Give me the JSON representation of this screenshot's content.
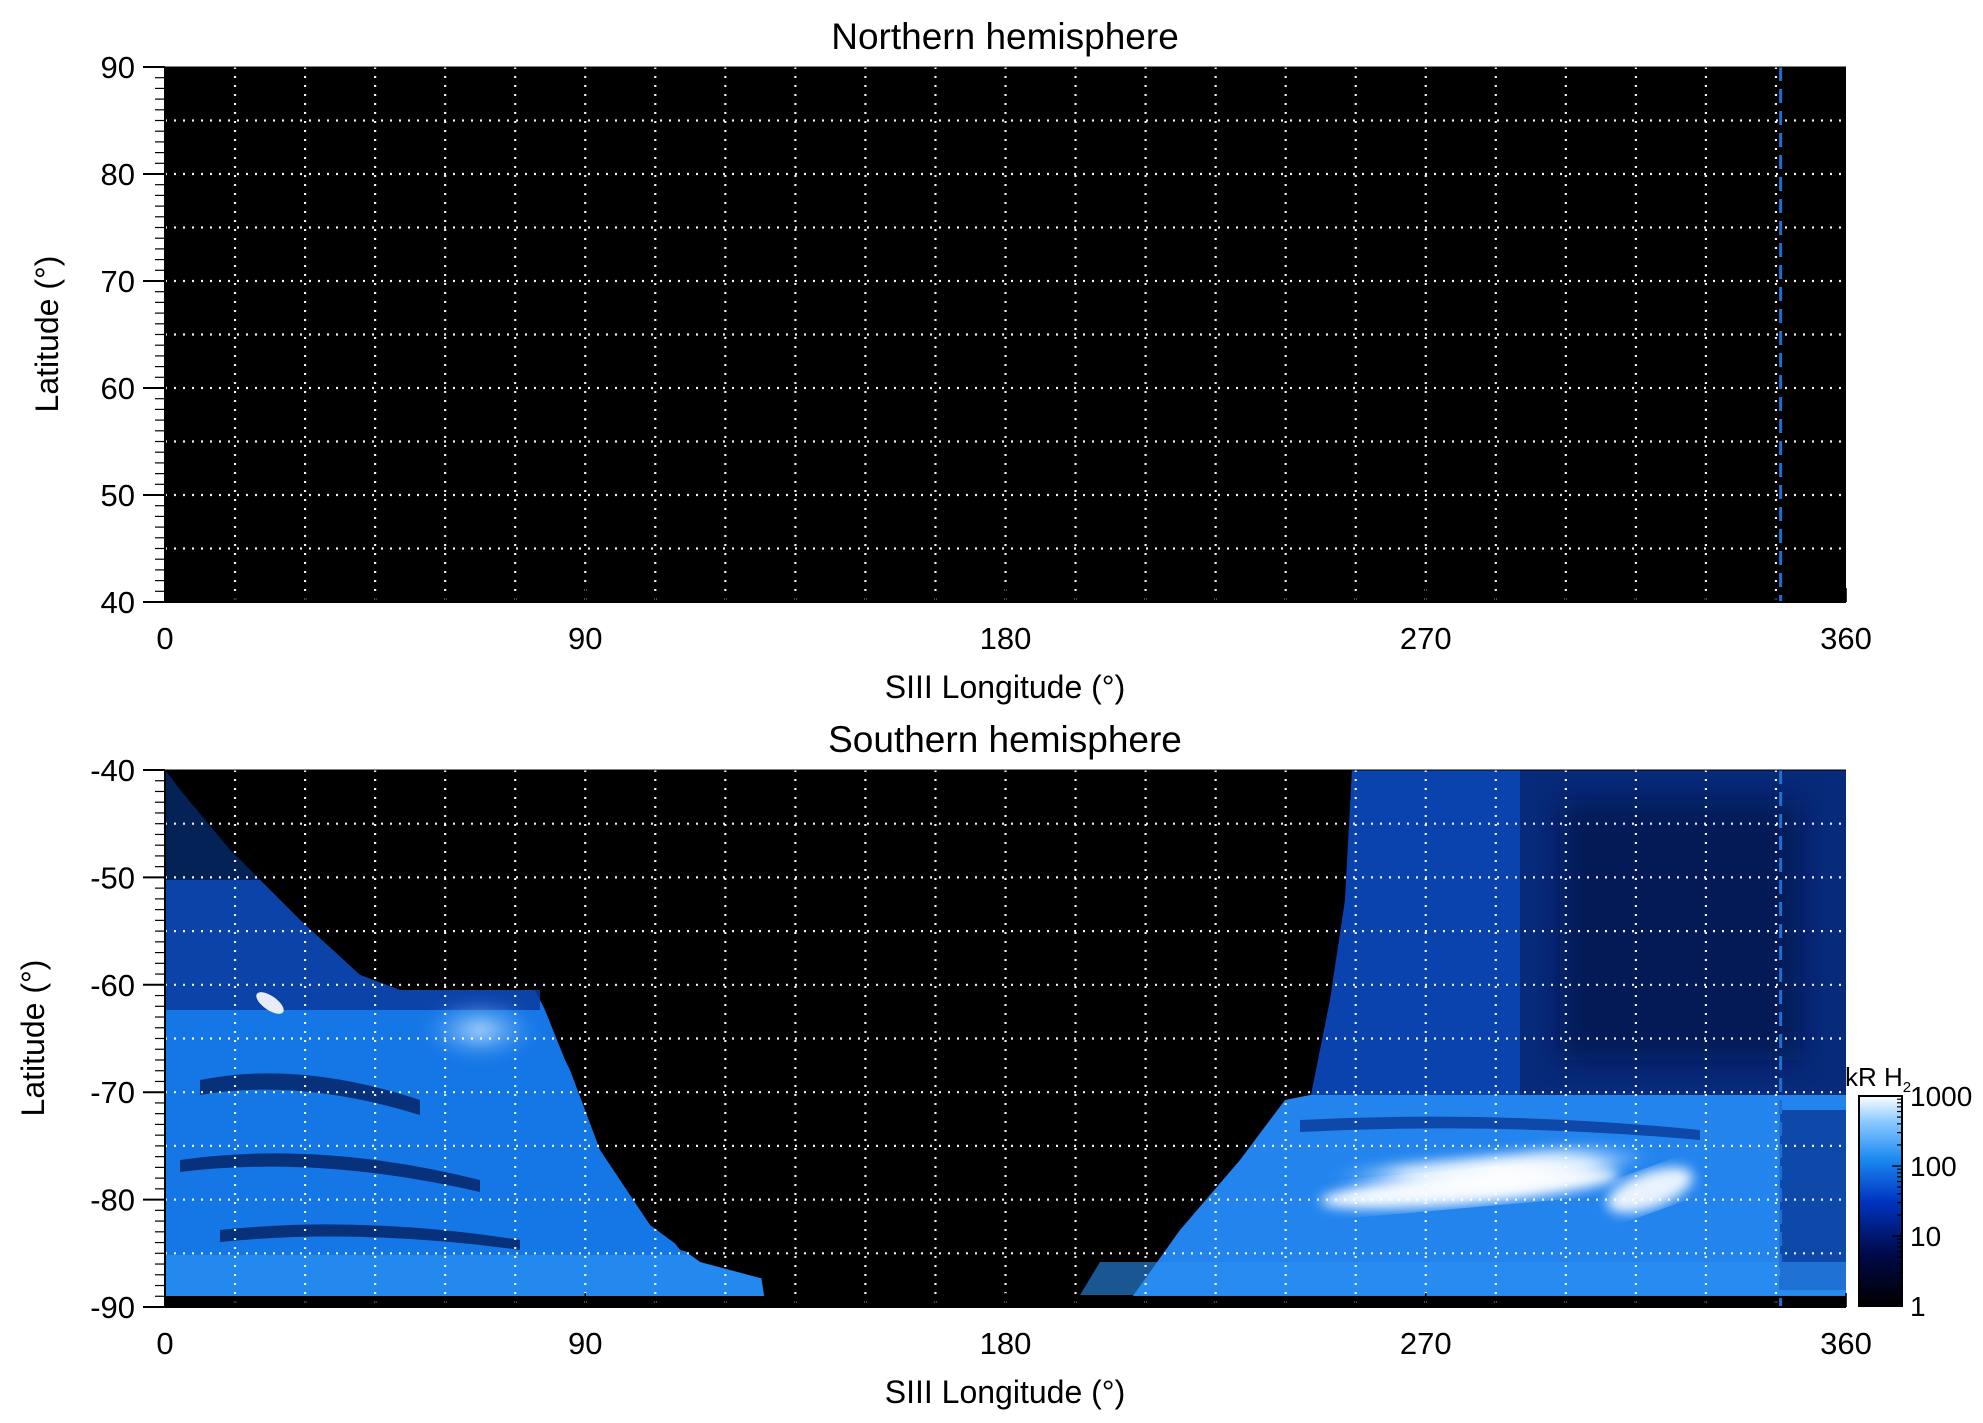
{
  "chart_data": [
    {
      "type": "heatmap",
      "title": "Northern hemisphere",
      "xlabel": "SIII Longitude (°)",
      "ylabel": "Latitude (°)",
      "xlim": [
        0,
        360
      ],
      "ylim": [
        40,
        90
      ],
      "xticks": [
        0,
        90,
        180,
        270,
        360
      ],
      "yticks": [
        40,
        50,
        60,
        70,
        80,
        90
      ],
      "grid": true,
      "grid_style": "dotted white",
      "grid_x_step": 15,
      "grid_y_step": 5,
      "background": "#000000",
      "marker_longitude": 346,
      "marker_color": "#1f6fd0",
      "emission": []
    },
    {
      "type": "heatmap",
      "title": "Southern hemisphere",
      "xlabel": "SIII Longitude (°)",
      "ylabel": "Latitude (°)",
      "xlim": [
        0,
        360
      ],
      "ylim": [
        -90,
        -40
      ],
      "xticks": [
        0,
        90,
        180,
        270,
        360
      ],
      "yticks": [
        -40,
        -50,
        -60,
        -70,
        -80,
        -90
      ],
      "grid": true,
      "grid_style": "dotted white",
      "grid_x_step": 15,
      "grid_y_step": 5,
      "background": "#000000",
      "marker_longitude": 346,
      "marker_color": "#1f6fd0",
      "emission_regions": [
        {
          "lon_range": [
            0,
            80
          ],
          "lat_range": [
            -90,
            -61
          ],
          "level_kR": 100
        },
        {
          "lon_range": [
            0,
            30
          ],
          "lat_range": [
            -61,
            -40
          ],
          "level_kR": 30
        },
        {
          "lon_range": [
            60,
            80
          ],
          "lat_range": [
            -70,
            -63
          ],
          "level_kR": 400
        },
        {
          "lon_range": [
            20,
            25
          ],
          "lat_range": [
            -63,
            -61
          ],
          "level_kR": 1000
        },
        {
          "lon_range": [
            255,
            360
          ],
          "lat_range": [
            -70,
            -40
          ],
          "level_kR": 20
        },
        {
          "lon_range": [
            235,
            360
          ],
          "lat_range": [
            -90,
            -70
          ],
          "level_kR": 150
        },
        {
          "lon_range": [
            250,
            310
          ],
          "lat_range": [
            -82,
            -78
          ],
          "level_kR": 1000
        },
        {
          "lon_range": [
            312,
            330
          ],
          "lat_range": [
            -82,
            -78
          ],
          "level_kR": 1000
        }
      ],
      "colorbar": {
        "label": "kR H",
        "label_subscript": "2",
        "scale": "log",
        "range": [
          1,
          1000
        ],
        "ticks": [
          1,
          10,
          100,
          1000
        ],
        "tick_labels": [
          "1",
          "10",
          "100",
          "1000"
        ],
        "colors": [
          "#000000",
          "#000a4a",
          "#0034c0",
          "#1c8af2",
          "#8ccaff",
          "#ffffff"
        ]
      }
    }
  ]
}
